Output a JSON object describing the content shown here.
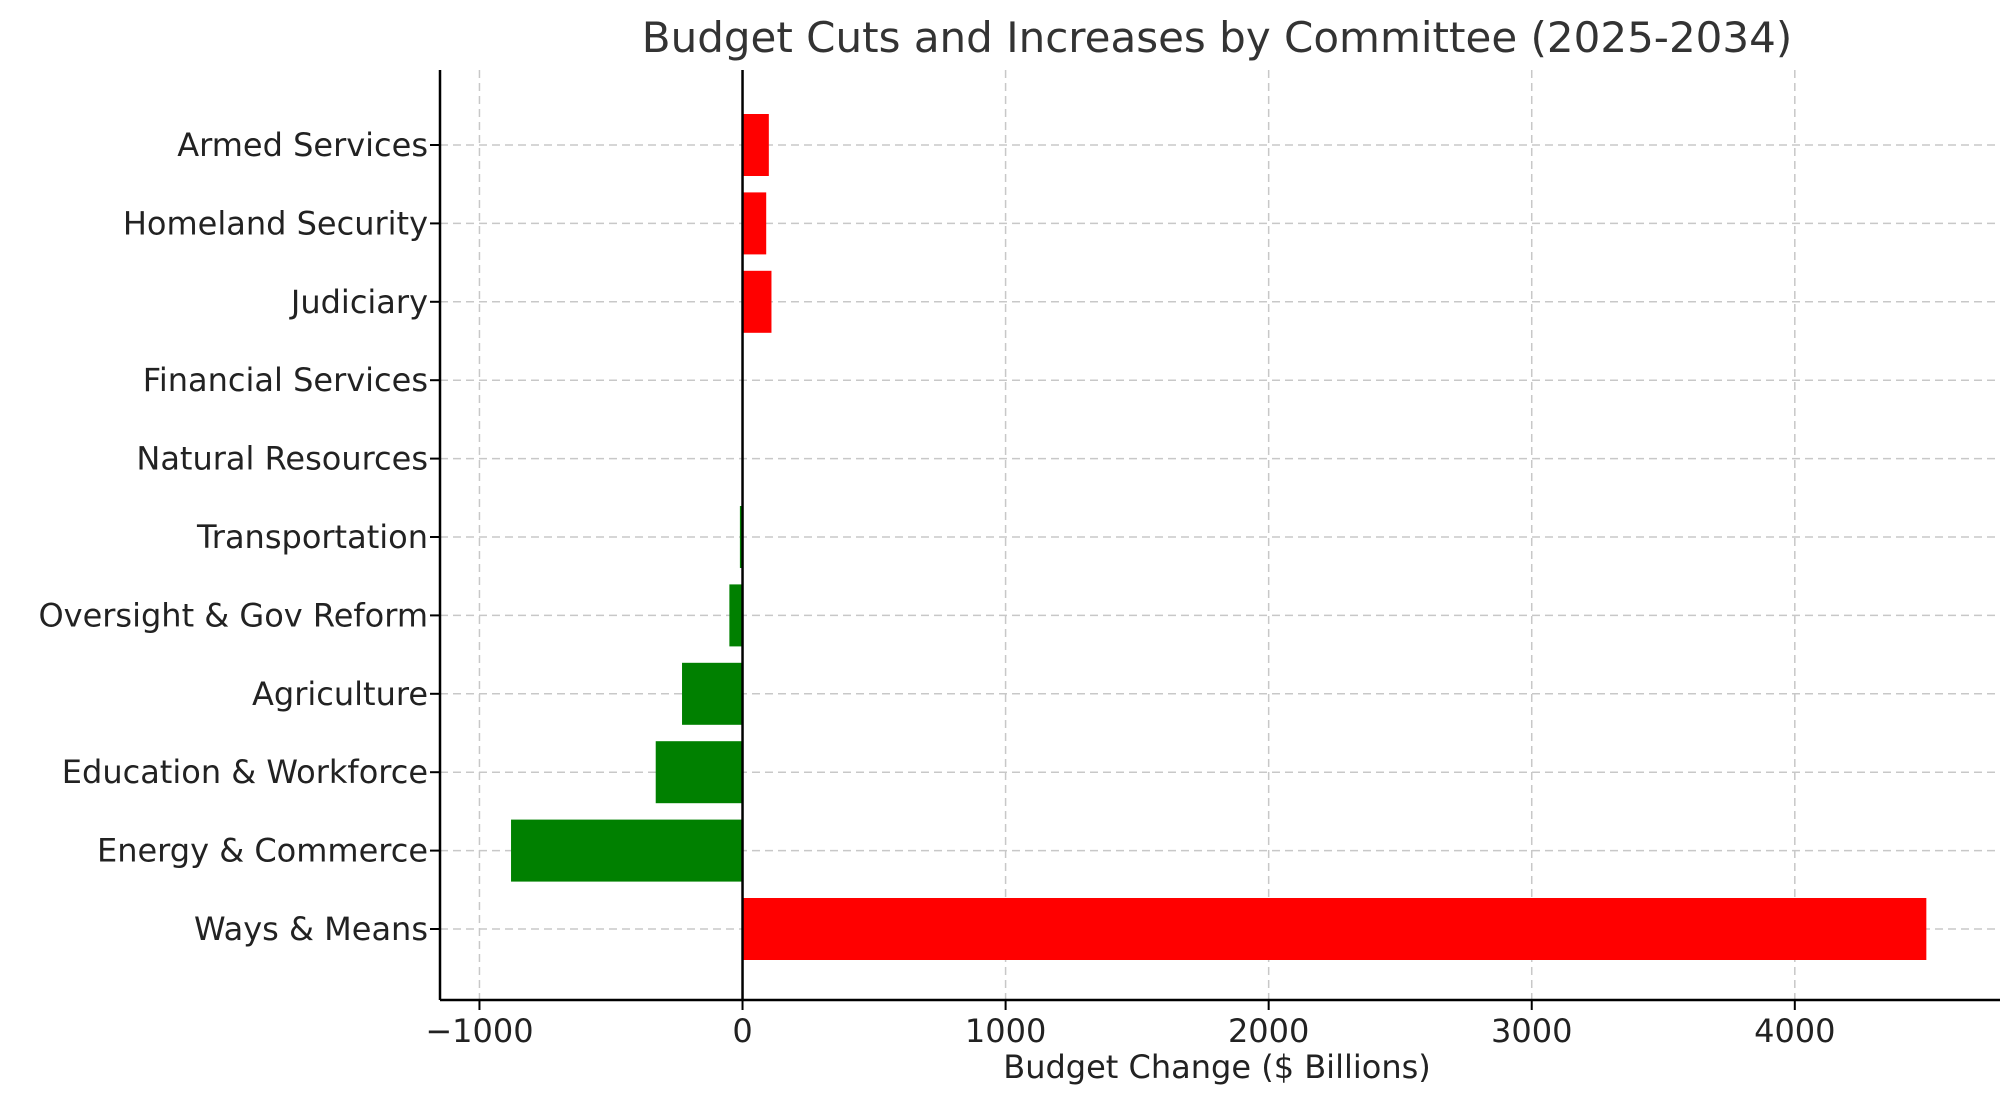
{
  "chart_data": {
    "type": "bar",
    "orientation": "horizontal",
    "title": "Budget Cuts and Increases by Committee (2025-2034)",
    "xlabel": "Budget Change ($ Billions)",
    "ylabel": "",
    "xlim": [
      -1150,
      4780
    ],
    "xticks": [
      -1000,
      0,
      1000,
      2000,
      3000,
      4000
    ],
    "xtick_labels": [
      "−1000",
      "0",
      "1000",
      "2000",
      "3000",
      "4000"
    ],
    "grid": true,
    "categories": [
      "Ways & Means",
      "Energy & Commerce",
      "Education & Workforce",
      "Agriculture",
      "Oversight & Gov Reform",
      "Transportation",
      "Natural Resources",
      "Financial Services",
      "Judiciary",
      "Homeland Security",
      "Armed Services"
    ],
    "values": [
      4500,
      -880,
      -330,
      -230,
      -50,
      -10,
      0,
      0,
      110,
      90,
      100
    ],
    "colors": {
      "positive": "#ff0000",
      "negative": "#008000"
    }
  }
}
